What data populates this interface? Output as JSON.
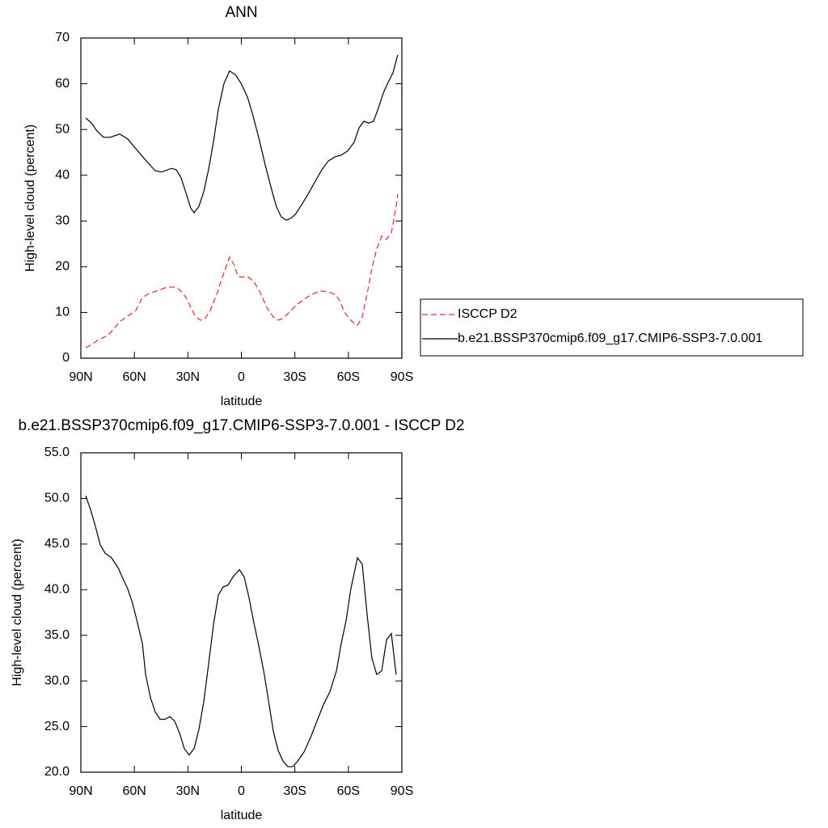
{
  "chart_data": [
    {
      "type": "line",
      "title": "ANN",
      "xlabel": "latitude",
      "ylabel": "High-level cloud (percent)",
      "xlim": [
        90,
        -90
      ],
      "ylim": [
        0,
        70
      ],
      "xticks": [
        {
          "value": 90,
          "label": "90N"
        },
        {
          "value": 60,
          "label": "60N"
        },
        {
          "value": 30,
          "label": "30N"
        },
        0,
        {
          "value": -30,
          "label": "30S"
        },
        {
          "value": -60,
          "label": "60S"
        },
        {
          "value": -90,
          "label": "90S"
        }
      ],
      "yticks": [
        0,
        10,
        20,
        30,
        40,
        50,
        60,
        70
      ],
      "legend": "right",
      "series": [
        {
          "name": "ISCCP D2",
          "color": "#e8262a",
          "line_style": "dashed",
          "x": [
            87.3,
            83.7,
            80.0,
            75.5,
            71.9,
            68.2,
            63.7,
            59.2,
            55.5,
            51.9,
            47.4,
            42.8,
            38.3,
            34.7,
            31.1,
            28.3,
            25.6,
            22.9,
            20.2,
            17.5,
            13.8,
            10.2,
            6.6,
            3.9,
            2.0,
            -0.7,
            -3.4,
            -7.0,
            -10.6,
            -14.3,
            -17.9,
            -20.6,
            -23.4,
            -27.0,
            -30.6,
            -35.1,
            -39.7,
            -44.2,
            -48.7,
            -52.4,
            -55.1,
            -57.8,
            -60.5,
            -63.2,
            -65.1,
            -67.8,
            -70.5,
            -73.2,
            -75.9,
            -78.7,
            -81.4,
            -84.1,
            -86.8,
            -87.7
          ],
          "values": [
            2.3,
            3.0,
            4.1,
            4.8,
            6.2,
            8.0,
            9.2,
            10.4,
            13.3,
            14.1,
            14.7,
            15.4,
            15.6,
            15.0,
            13.3,
            11.1,
            9.0,
            8.3,
            8.7,
            10.4,
            14.0,
            18.2,
            22.1,
            20.3,
            17.9,
            17.7,
            17.9,
            16.8,
            14.3,
            11.1,
            9.0,
            8.3,
            8.7,
            10.1,
            11.5,
            12.9,
            14.0,
            14.7,
            14.5,
            14.0,
            12.6,
            10.1,
            8.7,
            7.6,
            7.2,
            9.0,
            14.0,
            19.6,
            23.9,
            26.7,
            26.0,
            27.4,
            33.1,
            35.9
          ]
        },
        {
          "name": "b.e21.BSSP370cmip6.f09_g17.CMIP6-SSP3-7.0.001",
          "color": "#000000",
          "line_style": "solid",
          "x": [
            87.3,
            84.0,
            81.0,
            77.3,
            73.7,
            68.2,
            63.7,
            59.2,
            53.7,
            48.3,
            44.7,
            39.2,
            36.5,
            33.8,
            31.1,
            28.3,
            26.5,
            23.8,
            21.1,
            18.4,
            15.6,
            12.9,
            9.7,
            6.6,
            3.4,
            0.2,
            -3.4,
            -6.1,
            -9.7,
            -13.4,
            -17.0,
            -19.7,
            -22.4,
            -25.2,
            -27.9,
            -30.6,
            -34.2,
            -37.9,
            -41.5,
            -45.1,
            -48.7,
            -52.4,
            -56.0,
            -59.6,
            -63.2,
            -66.0,
            -68.7,
            -71.4,
            -74.1,
            -76.8,
            -79.6,
            -82.3,
            -85.0,
            -87.7
          ],
          "values": [
            52.5,
            51.4,
            49.7,
            48.3,
            48.3,
            49.0,
            47.9,
            45.8,
            43.3,
            41.0,
            40.7,
            41.5,
            41.2,
            39.4,
            36.2,
            32.7,
            31.8,
            33.2,
            36.4,
            41.2,
            47.4,
            54.4,
            60.1,
            62.8,
            62.0,
            60.1,
            57.1,
            53.6,
            48.3,
            42.2,
            36.8,
            33.1,
            30.9,
            30.2,
            30.6,
            31.6,
            33.8,
            36.2,
            38.7,
            41.2,
            43.1,
            44.0,
            44.4,
            45.3,
            47.2,
            50.4,
            51.8,
            51.4,
            51.8,
            54.6,
            58.0,
            60.3,
            62.4,
            66.3
          ]
        }
      ]
    },
    {
      "type": "line",
      "title": "b.e21.BSSP370cmip6.f09_g17.CMIP6-SSP3-7.0.001 - ISCCP D2",
      "xlabel": "latitude",
      "ylabel": "High-level cloud (percent)",
      "xlim": [
        90,
        -90
      ],
      "ylim": [
        20,
        55
      ],
      "xticks": [
        {
          "value": 90,
          "label": "90N"
        },
        {
          "value": 60,
          "label": "60N"
        },
        {
          "value": 30,
          "label": "30N"
        },
        0,
        {
          "value": -30,
          "label": "30S"
        },
        {
          "value": -60,
          "label": "60S"
        },
        {
          "value": -90,
          "label": "90S"
        }
      ],
      "yticks": [
        {
          "value": 20,
          "label": "20.0"
        },
        {
          "value": 25,
          "label": "25.0"
        },
        {
          "value": 30,
          "label": "30.0"
        },
        {
          "value": 35,
          "label": "35.0"
        },
        {
          "value": 40,
          "label": "40.0"
        },
        {
          "value": 45,
          "label": "45.0"
        },
        {
          "value": 50,
          "label": "50.0"
        },
        {
          "value": 55,
          "label": "55.0"
        }
      ],
      "series": [
        {
          "color": "#000000",
          "line_style": "solid",
          "x": [
            87.3,
            84.6,
            81.8,
            79.1,
            76.4,
            72.8,
            69.1,
            66.4,
            63.7,
            61.0,
            58.3,
            55.5,
            53.7,
            51.0,
            48.3,
            45.6,
            42.8,
            40.1,
            37.4,
            34.7,
            32.0,
            29.3,
            26.5,
            23.8,
            21.1,
            18.4,
            15.6,
            12.9,
            10.2,
            7.5,
            4.7,
            1.1,
            -1.6,
            -4.3,
            -7.0,
            -9.7,
            -12.5,
            -15.2,
            -17.9,
            -20.6,
            -23.4,
            -26.1,
            -28.8,
            -31.5,
            -35.1,
            -38.8,
            -42.4,
            -46.0,
            -49.6,
            -53.3,
            -56.0,
            -58.7,
            -61.4,
            -65.1,
            -67.8,
            -70.5,
            -73.2,
            -75.9,
            -78.7,
            -81.4,
            -84.1,
            -86.8
          ],
          "values": [
            50.3,
            48.8,
            46.9,
            44.9,
            44.0,
            43.5,
            42.4,
            41.2,
            40.1,
            38.5,
            36.4,
            34.1,
            30.7,
            28.2,
            26.6,
            25.8,
            25.8,
            26.1,
            25.6,
            24.3,
            22.6,
            21.9,
            22.6,
            24.7,
            27.7,
            31.8,
            36.2,
            39.4,
            40.3,
            40.5,
            41.4,
            42.2,
            41.4,
            39.1,
            36.4,
            33.9,
            31.1,
            27.9,
            24.5,
            22.4,
            21.2,
            20.6,
            20.6,
            21.2,
            22.2,
            23.8,
            25.6,
            27.4,
            28.8,
            31.1,
            34.1,
            36.6,
            40.1,
            43.5,
            42.8,
            37.3,
            32.5,
            30.7,
            31.1,
            34.5,
            35.2,
            30.7
          ]
        }
      ]
    }
  ]
}
